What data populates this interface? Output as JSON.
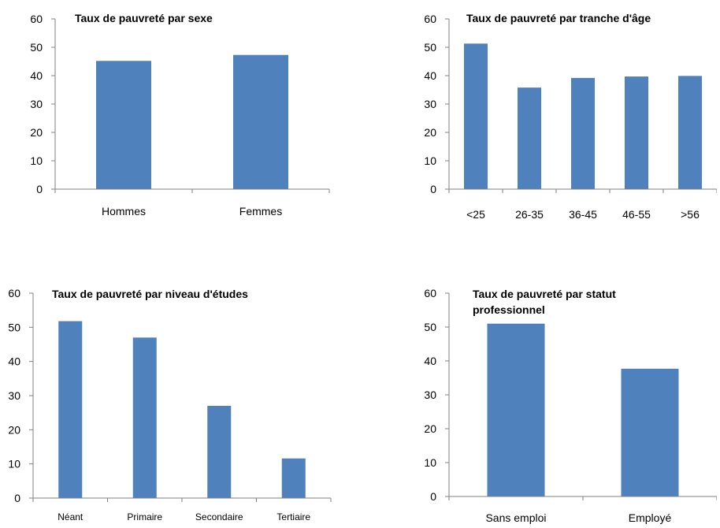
{
  "chart_data": [
    {
      "type": "bar",
      "title": "Taux de pauvreté par sexe",
      "title_lines": [
        "Taux de pauvreté par sexe"
      ],
      "categories": [
        "Hommes",
        "Femmes"
      ],
      "values": [
        45.2,
        47.3
      ],
      "ylim": [
        0,
        60
      ],
      "yticks": [
        0,
        10,
        20,
        30,
        40,
        50,
        60
      ],
      "bar_color": "#4f81bd",
      "grid": false,
      "legend": false
    },
    {
      "type": "bar",
      "title": "Taux de pauvreté par tranche d'âge",
      "title_lines": [
        "Taux de pauvreté par tranche d'âge"
      ],
      "categories": [
        "<25",
        "26-35",
        "36-45",
        "46-55",
        ">56"
      ],
      "values": [
        51.3,
        35.8,
        39.2,
        39.7,
        39.9
      ],
      "ylim": [
        0,
        60
      ],
      "yticks": [
        0,
        10,
        20,
        30,
        40,
        50,
        60
      ],
      "bar_color": "#4f81bd",
      "grid": false,
      "legend": false
    },
    {
      "type": "bar",
      "title": "Taux de pauvreté par niveau d'études",
      "title_lines": [
        "Taux de pauvreté par niveau d'études"
      ],
      "categories": [
        "Néant",
        "Primaire",
        "Secondaire",
        "Tertiaire"
      ],
      "values": [
        51.8,
        47.0,
        27.0,
        11.6
      ],
      "ylim": [
        0,
        60
      ],
      "yticks": [
        0,
        10,
        20,
        30,
        40,
        50,
        60
      ],
      "bar_color": "#4f81bd",
      "grid": false,
      "legend": false
    },
    {
      "type": "bar",
      "title": "Taux de pauvreté par statut professionnel",
      "title_lines": [
        "Taux de pauvreté par statut",
        "professionnel"
      ],
      "categories": [
        "Sans emploi",
        "Employé"
      ],
      "values": [
        51.0,
        37.7
      ],
      "ylim": [
        0,
        60
      ],
      "yticks": [
        0,
        10,
        20,
        30,
        40,
        50,
        60
      ],
      "bar_color": "#4f81bd",
      "grid": false,
      "legend": false
    }
  ]
}
